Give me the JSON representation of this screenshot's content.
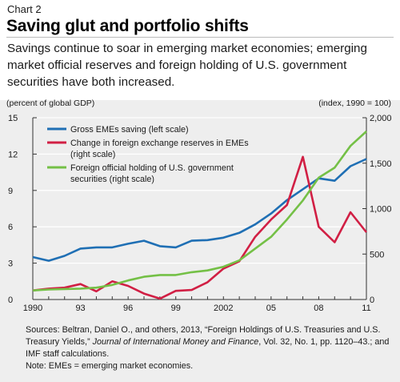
{
  "header": {
    "chart_number": "Chart 2",
    "title": "Saving glut and portfolio shifts",
    "subtitle": "Savings continue to soar in emerging market economies; emerging market official reserves and foreign holding of U.S. government securities have both increased."
  },
  "footer": {
    "sources_prefix": "Sources: Beltran, Daniel O., and others, 2013, “Foreign Holdings of U.S. Treasuries and U.S. Treasury Yields,” ",
    "sources_journal": "Journal of International Money and Finance",
    "sources_suffix": ", Vol. 32, No. 1, pp. 1120–43.; and IMF staff calculations.",
    "note": "Note: EMEs = emerging market economies."
  },
  "colors": {
    "saving": "#1f6fb4",
    "reserves": "#d11f44",
    "holdings": "#74c046",
    "axis": "#333333",
    "grid": "#ffffff"
  },
  "chart_data": {
    "type": "line",
    "left_axis_label": "(percent of global GDP)",
    "right_axis_label": "(index, 1990 = 100)",
    "left_ylim": [
      0,
      15
    ],
    "left_ticks": [
      "0",
      "3",
      "6",
      "9",
      "12",
      "15"
    ],
    "right_ylim": [
      0,
      2000
    ],
    "right_ticks": [
      "0",
      "500",
      "1,000",
      "1,500",
      "2,000"
    ],
    "xlim": [
      1990,
      2011
    ],
    "x_ticks": [
      {
        "x": 1990,
        "label": "1990"
      },
      {
        "x": 1993,
        "label": "93"
      },
      {
        "x": 1996,
        "label": "96"
      },
      {
        "x": 1999,
        "label": "99"
      },
      {
        "x": 2002,
        "label": "2002"
      },
      {
        "x": 2005,
        "label": "05"
      },
      {
        "x": 2008,
        "label": "08"
      },
      {
        "x": 2011,
        "label": "11"
      }
    ],
    "x": [
      1990,
      1991,
      1992,
      1993,
      1994,
      1995,
      1996,
      1997,
      1998,
      1999,
      2000,
      2001,
      2002,
      2003,
      2004,
      2005,
      2006,
      2007,
      2008,
      2009,
      2010,
      2011
    ],
    "series": [
      {
        "name": "Gross EMEs saving (left scale)",
        "axis": "left",
        "color_key": "saving",
        "values": [
          3.5,
          3.2,
          3.6,
          4.2,
          4.3,
          4.3,
          4.6,
          4.85,
          4.4,
          4.3,
          4.85,
          4.9,
          5.1,
          5.5,
          6.2,
          7.1,
          8.2,
          9.1,
          10.0,
          9.8,
          11.0,
          11.6
        ]
      },
      {
        "name": "Change in foreign exchange reserves in EMEs (right scale)",
        "axis": "right",
        "color_key": "reserves",
        "values": [
          100,
          120,
          130,
          170,
          90,
          200,
          150,
          65,
          10,
          95,
          105,
          190,
          340,
          420,
          690,
          880,
          1040,
          1570,
          800,
          630,
          960,
          740
        ]
      },
      {
        "name": "Foreign official holding of U.S. government securities (right scale)",
        "axis": "right",
        "color_key": "holdings",
        "values": [
          100,
          110,
          115,
          120,
          130,
          160,
          210,
          250,
          270,
          270,
          300,
          320,
          360,
          430,
          560,
          690,
          880,
          1090,
          1340,
          1450,
          1690,
          1850
        ]
      }
    ],
    "legend_position": "top-left",
    "grid": true
  }
}
